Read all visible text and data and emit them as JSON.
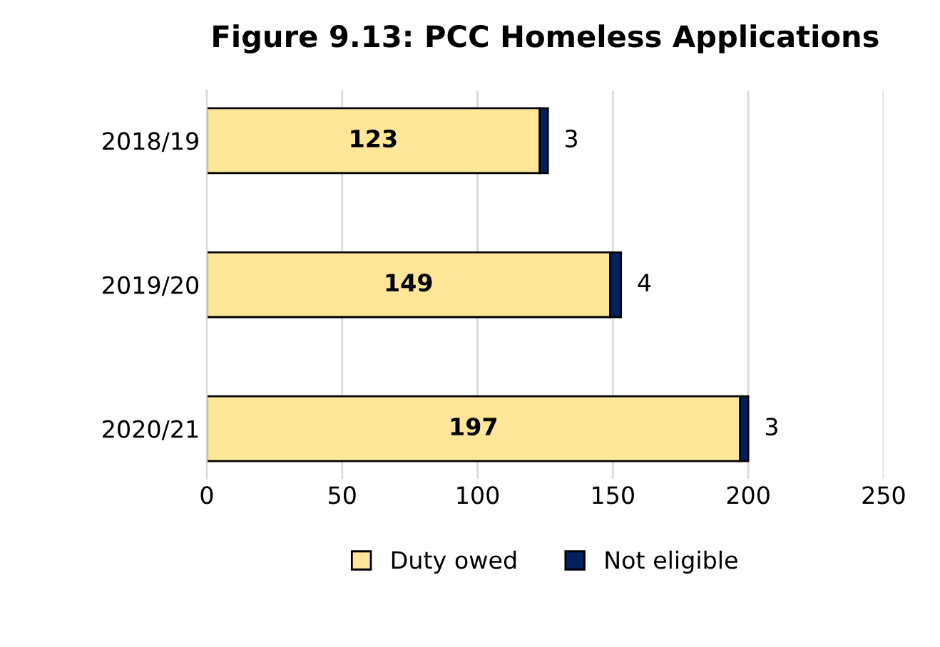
{
  "chart_data": {
    "type": "bar",
    "orientation": "horizontal",
    "stacked": true,
    "title": "Figure 9.13: PCC Homeless Applications",
    "categories": [
      "2018/19",
      "2019/20",
      "2020/21"
    ],
    "series": [
      {
        "name": "Duty owed",
        "color": "#ffe699",
        "values": [
          123,
          149,
          197
        ]
      },
      {
        "name": "Not eligible",
        "color": "#002060",
        "values": [
          3,
          4,
          3
        ]
      }
    ],
    "xlim": [
      0,
      250
    ],
    "xticks": [
      0,
      50,
      100,
      150,
      200,
      250
    ],
    "grid": "x",
    "legend": "bottom",
    "data_labels": true
  }
}
